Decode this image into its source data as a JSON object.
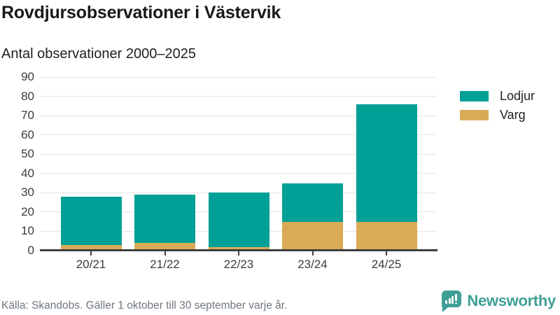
{
  "header": {
    "title": "Rovdjursobservationer i Västervik",
    "subtitle": "Antal observationer 2000–2025"
  },
  "chart_data": {
    "type": "bar",
    "stacked": true,
    "categories": [
      "20/21",
      "21/22",
      "22/23",
      "23/24",
      "24/25"
    ],
    "series": [
      {
        "name": "Lodjur",
        "color": "#00a096",
        "values": [
          25,
          25,
          28,
          20,
          61
        ]
      },
      {
        "name": "Varg",
        "color": "#d9ab57",
        "values": [
          3,
          4,
          2,
          15,
          15
        ]
      }
    ],
    "totals": [
      28,
      29,
      30,
      35,
      76
    ],
    "ylim": [
      0,
      90
    ],
    "ytick_step": 10,
    "grid": true,
    "legend_position": "right",
    "stack_order_bottom_to_top": [
      "Varg",
      "Lodjur"
    ]
  },
  "footer": {
    "source": "Källa: Skandobs. Gäller 1 oktober till 30 september varje år.",
    "brand": "Newsworthy",
    "brand_color": "#3f9f97"
  }
}
